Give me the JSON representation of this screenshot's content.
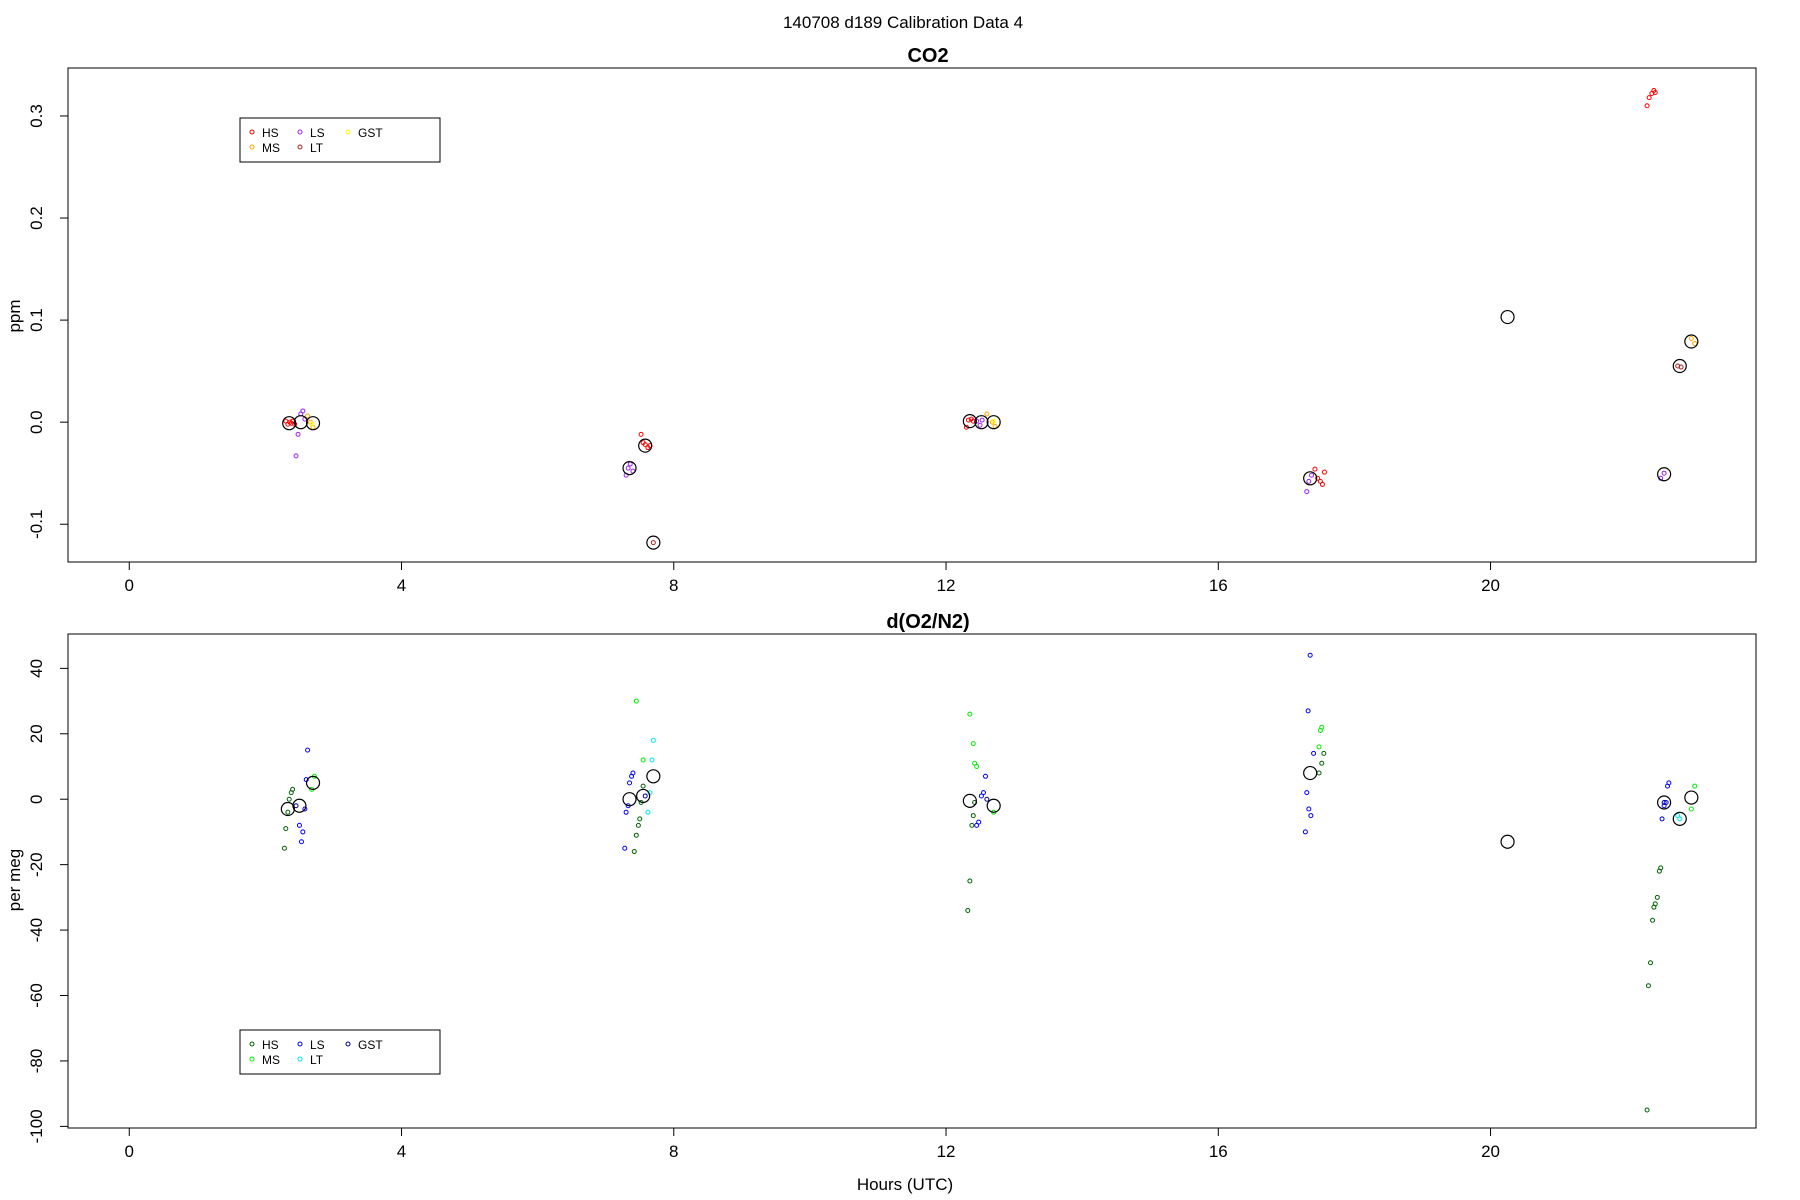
{
  "figure_title": "140708   d189   Calibration Data 4",
  "x_axis_label": "Hours (UTC)",
  "chart_data": [
    {
      "type": "scatter",
      "title": "CO2",
      "xlabel": "",
      "ylabel": "ppm",
      "xlim": [
        -0.9,
        23.9
      ],
      "ylim": [
        -0.137,
        0.347
      ],
      "x_ticks": [
        0,
        4,
        8,
        12,
        16,
        20
      ],
      "x_tick_labels": [
        "0",
        "4",
        "8",
        "12",
        "16",
        "20"
      ],
      "y_ticks": [
        -0.1,
        0.0,
        0.1,
        0.2,
        0.3
      ],
      "y_tick_labels": [
        "-0.1",
        "0.0",
        "0.1",
        "0.2",
        "0.3"
      ],
      "grid": false,
      "legend_position": "top-left",
      "legend": [
        {
          "label": "HS",
          "color": "#ff0000"
        },
        {
          "label": "MS",
          "color": "#ffa500"
        },
        {
          "label": "LS",
          "color": "#a020f0"
        },
        {
          "label": "LT",
          "color": "#b22222"
        },
        {
          "label": "GST",
          "color": "#ffff00"
        }
      ],
      "series": [
        {
          "name": "HS",
          "color": "#ff0000",
          "points": [
            [
              2.3,
              0.001
            ],
            [
              2.33,
              -0.002
            ],
            [
              2.36,
              0.0
            ],
            [
              2.38,
              -0.001
            ],
            [
              2.4,
              0.001
            ],
            [
              2.43,
              -0.002
            ],
            [
              7.52,
              -0.012
            ],
            [
              7.55,
              -0.02
            ],
            [
              7.58,
              -0.022
            ],
            [
              7.62,
              -0.025
            ],
            [
              7.65,
              -0.023
            ],
            [
              12.3,
              -0.005
            ],
            [
              12.33,
              0.002
            ],
            [
              12.37,
              0.003
            ],
            [
              12.4,
              0.001
            ],
            [
              17.42,
              -0.046
            ],
            [
              17.46,
              -0.055
            ],
            [
              17.5,
              -0.058
            ],
            [
              17.53,
              -0.061
            ],
            [
              17.56,
              -0.049
            ],
            [
              22.3,
              0.31
            ],
            [
              22.33,
              0.318
            ],
            [
              22.37,
              0.322
            ],
            [
              22.4,
              0.325
            ],
            [
              22.42,
              0.323
            ]
          ]
        },
        {
          "name": "MS",
          "color": "#ffa500",
          "points": [
            [
              2.62,
              0.006
            ],
            [
              2.66,
              0.0
            ],
            [
              2.7,
              -0.005
            ],
            [
              12.6,
              0.008
            ],
            [
              12.68,
              0.0
            ],
            [
              12.72,
              -0.004
            ],
            [
              22.95,
              0.082
            ],
            [
              23.0,
              0.077
            ]
          ]
        },
        {
          "name": "LS",
          "color": "#a020f0",
          "points": [
            [
              2.45,
              -0.033
            ],
            [
              2.48,
              -0.012
            ],
            [
              2.52,
              0.008
            ],
            [
              2.55,
              0.011
            ],
            [
              2.58,
              0.003
            ],
            [
              7.3,
              -0.052
            ],
            [
              7.33,
              -0.045
            ],
            [
              7.36,
              -0.041
            ],
            [
              7.4,
              -0.048
            ],
            [
              12.45,
              0.001
            ],
            [
              12.5,
              -0.003
            ],
            [
              12.53,
              0.002
            ],
            [
              17.3,
              -0.068
            ],
            [
              17.33,
              -0.058
            ],
            [
              17.37,
              -0.052
            ],
            [
              22.5,
              -0.055
            ],
            [
              22.55,
              -0.05
            ]
          ]
        },
        {
          "name": "LT",
          "color": "#b22222",
          "points": [
            [
              7.7,
              -0.118
            ],
            [
              22.75,
              0.055
            ],
            [
              22.8,
              0.054
            ]
          ]
        },
        {
          "name": "GST",
          "color": "#ffff00",
          "points": [
            [
              2.68,
              -0.002
            ],
            [
              12.7,
              0.001
            ]
          ]
        },
        {
          "name": "",
          "color": "#000000",
          "size": "large",
          "points": [
            [
              2.35,
              -0.001
            ],
            [
              2.52,
              0.0
            ],
            [
              2.7,
              -0.001
            ],
            [
              7.35,
              -0.045
            ],
            [
              7.58,
              -0.023
            ],
            [
              7.7,
              -0.118
            ],
            [
              12.35,
              0.001
            ],
            [
              12.52,
              0.0
            ],
            [
              12.7,
              0.0
            ],
            [
              17.35,
              -0.055
            ],
            [
              20.25,
              0.103
            ],
            [
              22.55,
              -0.051
            ],
            [
              22.78,
              0.055
            ],
            [
              22.95,
              0.079
            ]
          ]
        }
      ]
    },
    {
      "type": "scatter",
      "title": "d(O2/N2)",
      "xlabel": "Hours (UTC)",
      "ylabel": "per meg",
      "xlim": [
        -0.9,
        23.9
      ],
      "ylim": [
        -100.5,
        50.5
      ],
      "x_ticks": [
        0,
        4,
        8,
        12,
        16,
        20
      ],
      "x_tick_labels": [
        "0",
        "4",
        "8",
        "12",
        "16",
        "20"
      ],
      "y_ticks": [
        -100,
        -80,
        -60,
        -40,
        -20,
        0,
        20,
        40
      ],
      "y_tick_labels": [
        "-100",
        "-80",
        "-60",
        "-40",
        "-20",
        "0",
        "20",
        "40"
      ],
      "grid": false,
      "legend_position": "bottom-left",
      "legend": [
        {
          "label": "HS",
          "color": "#006400"
        },
        {
          "label": "MS",
          "color": "#00ee00"
        },
        {
          "label": "LS",
          "color": "#0000ff"
        },
        {
          "label": "LT",
          "color": "#00e5ee"
        },
        {
          "label": "GST",
          "color": "#00008b"
        }
      ],
      "series": [
        {
          "name": "HS",
          "color": "#006400",
          "points": [
            [
              2.28,
              -15
            ],
            [
              2.3,
              -9
            ],
            [
              2.33,
              -4
            ],
            [
              2.35,
              0
            ],
            [
              2.38,
              2
            ],
            [
              2.4,
              3
            ],
            [
              7.42,
              -16
            ],
            [
              7.45,
              -11
            ],
            [
              7.48,
              -8
            ],
            [
              7.5,
              -6
            ],
            [
              7.52,
              -1
            ],
            [
              7.55,
              4
            ],
            [
              12.32,
              -34
            ],
            [
              12.35,
              -25
            ],
            [
              12.38,
              -8
            ],
            [
              12.4,
              -5
            ],
            [
              12.42,
              -1
            ],
            [
              17.48,
              8
            ],
            [
              17.52,
              11
            ],
            [
              17.55,
              14
            ],
            [
              22.3,
              -95
            ],
            [
              22.32,
              -57
            ],
            [
              22.35,
              -50
            ],
            [
              22.38,
              -37
            ],
            [
              22.4,
              -33
            ],
            [
              22.42,
              -32
            ],
            [
              22.45,
              -30
            ],
            [
              22.48,
              -22
            ],
            [
              22.5,
              -21
            ]
          ]
        },
        {
          "name": "MS",
          "color": "#00ee00",
          "points": [
            [
              2.68,
              3
            ],
            [
              2.72,
              7
            ],
            [
              7.45,
              30
            ],
            [
              7.55,
              12
            ],
            [
              12.35,
              26
            ],
            [
              12.4,
              17
            ],
            [
              12.42,
              11
            ],
            [
              12.45,
              10
            ],
            [
              12.7,
              -4
            ],
            [
              17.48,
              16
            ],
            [
              17.5,
              21
            ],
            [
              17.52,
              22
            ],
            [
              22.95,
              -3
            ],
            [
              23.0,
              4
            ]
          ]
        },
        {
          "name": "LS",
          "color": "#0000ff",
          "points": [
            [
              2.5,
              -8
            ],
            [
              2.53,
              -13
            ],
            [
              2.55,
              -10
            ],
            [
              2.58,
              -3
            ],
            [
              2.6,
              6
            ],
            [
              2.62,
              15
            ],
            [
              7.28,
              -15
            ],
            [
              7.3,
              -4
            ],
            [
              7.33,
              -2
            ],
            [
              7.35,
              5
            ],
            [
              7.38,
              7
            ],
            [
              7.4,
              8
            ],
            [
              12.45,
              -8
            ],
            [
              12.48,
              -7
            ],
            [
              12.52,
              1
            ],
            [
              12.55,
              2
            ],
            [
              12.58,
              7
            ],
            [
              17.28,
              -10
            ],
            [
              17.3,
              2
            ],
            [
              17.33,
              -3
            ],
            [
              17.36,
              -5
            ],
            [
              17.4,
              14
            ],
            [
              17.32,
              27
            ],
            [
              17.35,
              44
            ],
            [
              22.52,
              -6
            ],
            [
              22.55,
              -2
            ],
            [
              22.58,
              -1
            ],
            [
              22.6,
              4
            ],
            [
              22.62,
              5
            ]
          ]
        },
        {
          "name": "LT",
          "color": "#00e5ee",
          "points": [
            [
              7.62,
              -4
            ],
            [
              7.65,
              2
            ],
            [
              7.68,
              12
            ],
            [
              7.7,
              18
            ],
            [
              22.75,
              -5
            ],
            [
              22.78,
              -6
            ]
          ]
        },
        {
          "name": "GST",
          "color": "#00008b",
          "points": [
            [
              2.45,
              -2
            ],
            [
              7.58,
              1
            ],
            [
              12.6,
              0
            ],
            [
              22.55,
              -1
            ]
          ]
        },
        {
          "name": "",
          "color": "#000000",
          "size": "large",
          "points": [
            [
              2.33,
              -3
            ],
            [
              2.5,
              -2
            ],
            [
              2.7,
              5
            ],
            [
              7.35,
              0
            ],
            [
              7.55,
              1
            ],
            [
              7.7,
              7
            ],
            [
              12.35,
              -0.5
            ],
            [
              12.7,
              -2
            ],
            [
              17.35,
              8
            ],
            [
              20.25,
              -13
            ],
            [
              22.55,
              -1
            ],
            [
              22.78,
              -6
            ],
            [
              22.95,
              0.5
            ]
          ]
        }
      ]
    }
  ]
}
